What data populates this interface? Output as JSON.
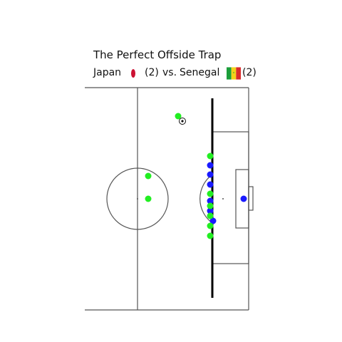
{
  "title": "The Perfect Offside Trap",
  "match": {
    "team_a": "Japan",
    "team_a_score": "(2)",
    "vs": "vs.",
    "team_b": "Senegal",
    "team_b_score": "(2)",
    "team_a_flag": "japan-flag-icon",
    "team_b_flag": "senegal-flag-icon"
  },
  "colors": {
    "team_a": "#1a1aff",
    "team_b": "#22ee22",
    "line": "#555555",
    "offside_line": "#000000",
    "flag_red": "#cc1133",
    "sn_green": "#1b9e3a",
    "sn_yellow": "#f3d21a",
    "sn_red": "#d92b2b"
  },
  "players": {
    "blue": [
      {
        "id": "b1"
      },
      {
        "id": "b2"
      },
      {
        "id": "b3"
      },
      {
        "id": "b4"
      },
      {
        "id": "b5"
      },
      {
        "id": "b6"
      },
      {
        "id": "gk"
      }
    ],
    "green": [
      {
        "id": "g1"
      },
      {
        "id": "g2"
      },
      {
        "id": "g3"
      },
      {
        "id": "g4"
      },
      {
        "id": "g5"
      },
      {
        "id": "g6"
      },
      {
        "id": "g7"
      },
      {
        "id": "g8"
      },
      {
        "id": "g9"
      }
    ]
  }
}
